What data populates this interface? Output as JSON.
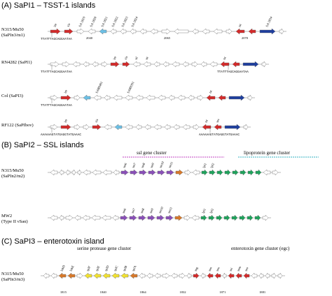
{
  "sections": [
    {
      "title": "(A) SaPI1 – TSST-1 islands",
      "tracks": [
        {
          "name": [
            "N315/Mu50",
            "(SaPIn3/m1)"
          ],
          "genes": [
            "int",
            "xis",
            "SA 1819",
            "SA 1820",
            "SA 1821",
            "SA 1822",
            "SA 1823",
            "SA 1824",
            "tst",
            "SA 1834"
          ],
          "seqs": [
            "TTATTTAGCAGGAATAA"
          ],
          "coords": [
            "2040",
            "2065",
            "2070"
          ]
        },
        {
          "name": [
            "RN4282 (SaPI1)"
          ],
          "genes": [
            "int",
            "xis",
            "stl",
            "str",
            "tst"
          ],
          "seqs": [
            "TTATTTAGCAGGAATAA",
            "TTATTTAGCAGGAATAA"
          ]
        },
        {
          "name": [
            "Col (SaPI3)"
          ],
          "genes": [
            "int",
            "SAR0401",
            "SAR0391",
            "tst"
          ],
          "seqs": [
            "TTATTTAGCAGGAATAA"
          ]
        },
        {
          "name": [
            "RF122 (SaPIbov)"
          ],
          "genes": [
            "int",
            "xis",
            "tst",
            "sec"
          ],
          "seqs": [
            "AAAAAAGTATGAGGTATGAAAC",
            "AAAAAAGTATGAGGTATGAAAC"
          ]
        }
      ]
    },
    {
      "title": "(B) SaPI2 – SSL islands",
      "clusters": [
        "ssl gene cluster",
        "lipoprotein gene cluster"
      ],
      "tracks": [
        {
          "name": [
            "N315/Mu50",
            "(SaPIn2/m2)"
          ],
          "genes": [
            "set6",
            "set7",
            "set8",
            "set9",
            "set10",
            "set11",
            "lpl1",
            "lpl2"
          ]
        },
        {
          "name": [
            "MW2",
            "(Type II νSaα)"
          ],
          "genes": [
            "set6",
            "set7",
            "set8",
            "set9",
            "set10",
            "set11",
            "lpl1",
            "lpl2"
          ]
        }
      ]
    },
    {
      "title": "(C) SaPI3 – enterotoxin island",
      "clusters": [
        "serine protease gene cluster",
        "enterotoxin gene cluster (egc)"
      ],
      "tracks": [
        {
          "name": [
            "N315/Mu50",
            "(SaPIn3/m3)"
          ],
          "genes": [
            "lukD",
            "lukE",
            "splF",
            "splE",
            "splD",
            "splC",
            "splB",
            "splA",
            "seg",
            "sen",
            "seu",
            "sei",
            "sem",
            "seo"
          ],
          "coords": [
            "1815",
            "1840",
            "1864",
            "1832",
            "1871",
            "1881"
          ]
        }
      ]
    }
  ]
}
